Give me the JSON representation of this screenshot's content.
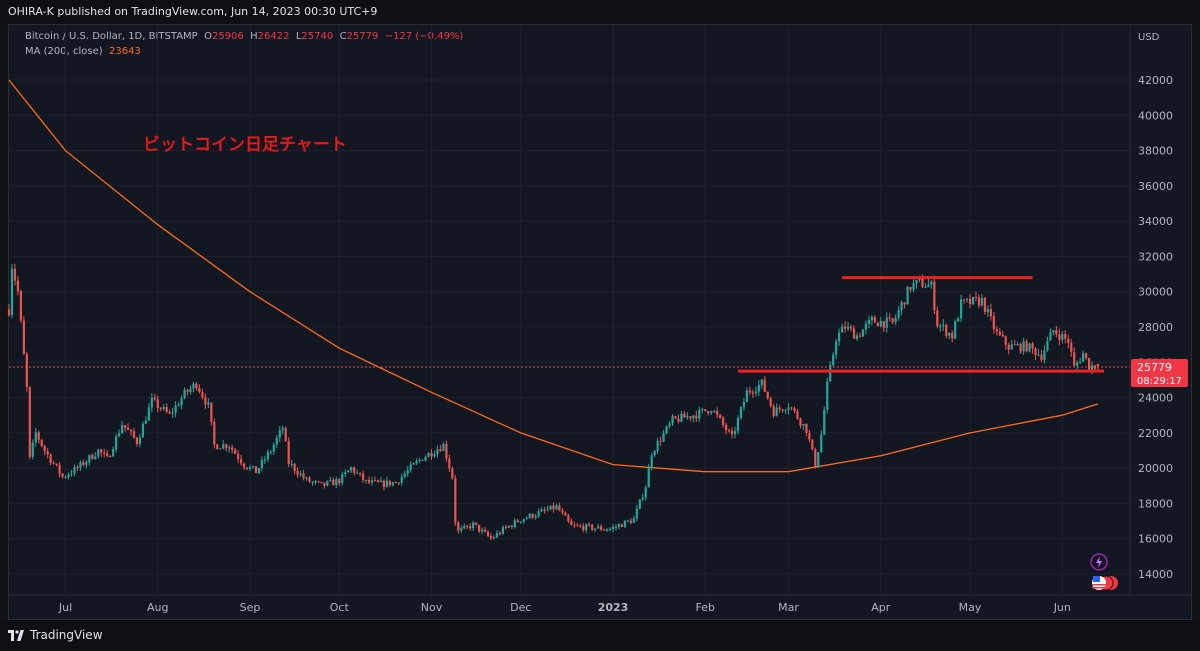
{
  "header": {
    "publisher": "OHIRA-K published on TradingView.com, Jun 14, 2023 00:30 UTC+9"
  },
  "legend": {
    "symbol": "Bitcoin / U.S. Dollar, 1D, BITSTAMP",
    "open_label": "O",
    "open": "25906",
    "high_label": "H",
    "high": "26422",
    "low_label": "L",
    "low": "25740",
    "close_label": "C",
    "close": "25779",
    "change": "−127 (−0.49%)",
    "ma_label": "MA (200, close)",
    "ma_value": "23643"
  },
  "annotation": "ビットコイン日足チャート",
  "price_axis": {
    "currency": "USD",
    "last_price": "25779",
    "countdown": "08:29:17"
  },
  "footer": {
    "brand": "TradingView"
  },
  "colors": {
    "up": "#26a69a",
    "down": "#ef5350",
    "ma": "#ff6a1a",
    "hline": "#f02020",
    "annotation": "#e3191b"
  },
  "icons": [
    "lightning-icon",
    "us-flag-icon"
  ],
  "chart_data": {
    "type": "candlestick",
    "ylim": [
      13000,
      43000
    ],
    "yticks": [
      14000,
      16000,
      18000,
      20000,
      22000,
      24000,
      26000,
      28000,
      30000,
      32000,
      34000,
      36000,
      38000,
      40000,
      42000
    ],
    "xticks": [
      "Jul",
      "Aug",
      "Sep",
      "Oct",
      "Nov",
      "Dec",
      "2023",
      "Feb",
      "Mar",
      "Apr",
      "May",
      "Jun"
    ],
    "ohlc_keyframes": [
      [
        "2022-06-12",
        29000
      ],
      [
        "2022-06-13",
        31500
      ],
      [
        "2022-06-15",
        30000
      ],
      [
        "2022-06-18",
        24500
      ],
      [
        "2022-06-19",
        20500
      ],
      [
        "2022-06-21",
        22000
      ],
      [
        "2022-06-24",
        21000
      ],
      [
        "2022-06-30",
        19500
      ],
      [
        "2022-07-05",
        20000
      ],
      [
        "2022-07-12",
        21000
      ],
      [
        "2022-07-15",
        20500
      ],
      [
        "2022-07-20",
        22500
      ],
      [
        "2022-07-25",
        21500
      ],
      [
        "2022-07-30",
        23800
      ],
      [
        "2022-08-05",
        23000
      ],
      [
        "2022-08-10",
        24200
      ],
      [
        "2022-08-14",
        24800
      ],
      [
        "2022-08-18",
        23500
      ],
      [
        "2022-08-20",
        21300
      ],
      [
        "2022-08-25",
        21300
      ],
      [
        "2022-08-30",
        20200
      ],
      [
        "2022-09-03",
        19800
      ],
      [
        "2022-09-08",
        21000
      ],
      [
        "2022-09-12",
        22300
      ],
      [
        "2022-09-14",
        20300
      ],
      [
        "2022-09-20",
        19300
      ],
      [
        "2022-09-25",
        19000
      ],
      [
        "2022-10-01",
        19300
      ],
      [
        "2022-10-05",
        20000
      ],
      [
        "2022-10-10",
        19200
      ],
      [
        "2022-10-15",
        19100
      ],
      [
        "2022-10-20",
        19200
      ],
      [
        "2022-10-25",
        20000
      ],
      [
        "2022-10-29",
        20600
      ],
      [
        "2022-11-05",
        21300
      ],
      [
        "2022-11-08",
        19500
      ],
      [
        "2022-11-09",
        17000
      ],
      [
        "2022-11-10",
        16400
      ],
      [
        "2022-11-15",
        16800
      ],
      [
        "2022-11-21",
        16000
      ],
      [
        "2022-11-25",
        16500
      ],
      [
        "2022-12-01",
        17100
      ],
      [
        "2022-12-13",
        17800
      ],
      [
        "2022-12-18",
        16700
      ],
      [
        "2022-12-31",
        16550
      ],
      [
        "2023-01-08",
        17100
      ],
      [
        "2023-01-12",
        19000
      ],
      [
        "2023-01-14",
        20900
      ],
      [
        "2023-01-21",
        22700
      ],
      [
        "2023-01-30",
        23100
      ],
      [
        "2023-02-03",
        23400
      ],
      [
        "2023-02-10",
        21700
      ],
      [
        "2023-02-15",
        24300
      ],
      [
        "2023-02-20",
        24800
      ],
      [
        "2023-02-24",
        23200
      ],
      [
        "2023-03-01",
        23600
      ],
      [
        "2023-03-07",
        22200
      ],
      [
        "2023-03-10",
        20200
      ],
      [
        "2023-03-12",
        21900
      ],
      [
        "2023-03-14",
        24700
      ],
      [
        "2023-03-17",
        27400
      ],
      [
        "2023-03-20",
        28000
      ],
      [
        "2023-03-24",
        27500
      ],
      [
        "2023-03-29",
        28350
      ],
      [
        "2023-04-05",
        28200
      ],
      [
        "2023-04-11",
        30300
      ],
      [
        "2023-04-14",
        30500
      ],
      [
        "2023-04-18",
        30300
      ],
      [
        "2023-04-20",
        28200
      ],
      [
        "2023-04-25",
        27500
      ],
      [
        "2023-04-28",
        29300
      ],
      [
        "2023-05-05",
        29500
      ],
      [
        "2023-05-10",
        27600
      ],
      [
        "2023-05-14",
        26900
      ],
      [
        "2023-05-20",
        26900
      ],
      [
        "2023-05-25",
        26400
      ],
      [
        "2023-05-29",
        27800
      ],
      [
        "2023-06-03",
        27200
      ],
      [
        "2023-06-05",
        25700
      ],
      [
        "2023-06-08",
        26500
      ],
      [
        "2023-06-10",
        25800
      ],
      [
        "2023-06-13",
        25779
      ]
    ],
    "ma200_keyframes": [
      [
        "2022-06-12",
        42000
      ],
      [
        "2022-07-01",
        38000
      ],
      [
        "2022-08-01",
        33800
      ],
      [
        "2022-09-01",
        30000
      ],
      [
        "2022-10-01",
        26800
      ],
      [
        "2022-11-01",
        24300
      ],
      [
        "2022-12-01",
        22000
      ],
      [
        "2023-01-01",
        20200
      ],
      [
        "2023-02-01",
        19800
      ],
      [
        "2023-03-01",
        19800
      ],
      [
        "2023-04-01",
        20700
      ],
      [
        "2023-05-01",
        22000
      ],
      [
        "2023-06-01",
        23000
      ],
      [
        "2023-06-13",
        23643
      ]
    ],
    "horizontal_lines": [
      {
        "price": 30800,
        "from": "2023-03-19",
        "to": "2023-05-22"
      },
      {
        "price": 25500,
        "from": "2023-02-12",
        "to": "2023-06-15"
      }
    ]
  }
}
